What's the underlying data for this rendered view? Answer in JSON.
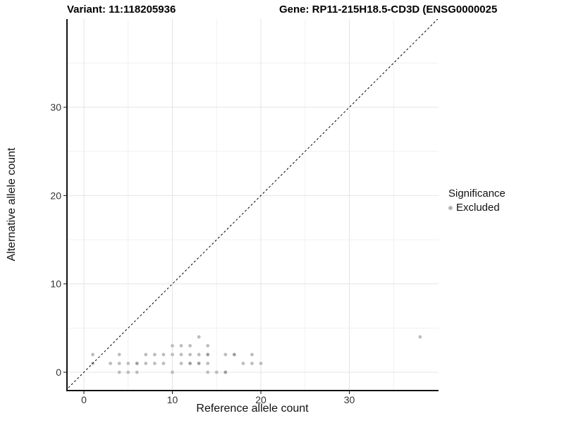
{
  "titles": {
    "left": "Variant: 11:118205936",
    "right": "Gene: RP11-215H18.5-CD3D (ENSG0000025"
  },
  "legend": {
    "title": "Significance",
    "items": [
      {
        "label": "Excluded",
        "color": "#b5b5b5"
      }
    ]
  },
  "colors": {
    "point": "#bdbdbd",
    "point_dark": "#9d9d9d",
    "grid_major": "#e4e4e4",
    "grid_minor": "#f1f1f1",
    "axis_line": "#111111",
    "tick_label": "#333333",
    "abline": "#000000",
    "background": "#ffffff"
  },
  "chart_data": {
    "type": "scatter",
    "title_left": "Variant: 11:118205936",
    "title_right": "Gene: RP11-215H18.5-CD3D (ENSG0000025",
    "xlabel": "Reference allele count",
    "ylabel": "Alternative allele count",
    "xlim": [
      -1.9,
      40.1
    ],
    "ylim": [
      -2.1,
      40.0
    ],
    "x_ticks": [
      0,
      10,
      20,
      30
    ],
    "y_ticks": [
      0,
      10,
      20,
      30
    ],
    "x_minor": [
      5,
      15,
      25,
      35
    ],
    "y_minor": [
      5,
      15,
      25,
      35
    ],
    "grid": true,
    "legend_position": "right",
    "abline": {
      "type": "identity y=x",
      "intercept": 0,
      "slope": 1,
      "style": "dashed",
      "color": "#000000"
    },
    "series": [
      {
        "name": "Excluded",
        "points": [
          [
            4,
            0
          ],
          [
            5,
            0
          ],
          [
            6,
            0
          ],
          [
            10,
            0
          ],
          [
            14,
            0
          ],
          [
            15,
            0
          ],
          [
            16,
            0,
            2
          ],
          [
            1,
            1
          ],
          [
            3,
            1
          ],
          [
            4,
            1
          ],
          [
            5,
            1
          ],
          [
            6,
            1,
            2
          ],
          [
            7,
            1
          ],
          [
            8,
            1
          ],
          [
            9,
            1
          ],
          [
            11,
            1
          ],
          [
            12,
            1,
            2
          ],
          [
            13,
            1,
            2
          ],
          [
            14,
            1
          ],
          [
            18,
            1
          ],
          [
            19,
            1
          ],
          [
            20,
            1
          ],
          [
            1,
            2
          ],
          [
            4,
            2
          ],
          [
            7,
            2
          ],
          [
            8,
            2
          ],
          [
            9,
            2
          ],
          [
            10,
            2
          ],
          [
            11,
            2
          ],
          [
            12,
            2
          ],
          [
            13,
            2
          ],
          [
            14,
            2,
            2
          ],
          [
            16,
            2
          ],
          [
            17,
            2,
            2
          ],
          [
            19,
            2
          ],
          [
            10,
            3
          ],
          [
            11,
            3
          ],
          [
            12,
            3
          ],
          [
            14,
            3
          ],
          [
            13,
            4
          ],
          [
            38,
            4
          ]
        ]
      }
    ]
  }
}
